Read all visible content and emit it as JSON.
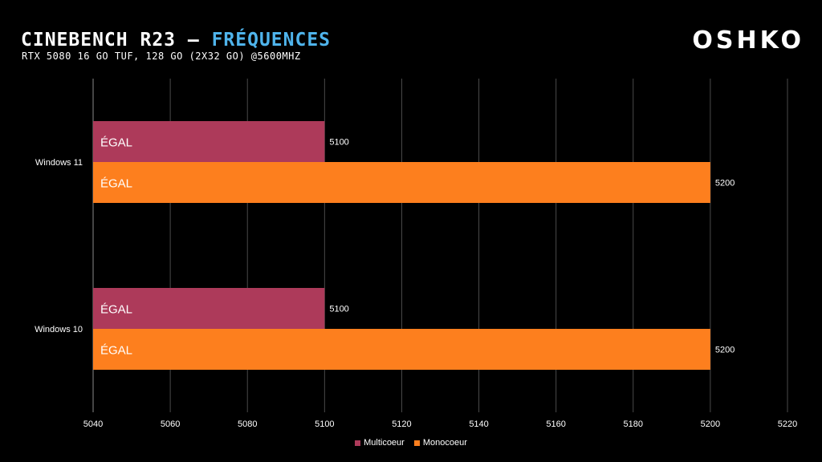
{
  "header": {
    "title_main": "CINEBENCH R23 – ",
    "title_accent": "FRÉQUENCES",
    "subtitle": "RTX 5080 16 Go TUF, 128 Go (2x32 Go) @5600MHz",
    "logo": "OSHKO"
  },
  "colors": {
    "background": "#000000",
    "multicoeur": "#ad3a5a",
    "monocoeur": "#fd7f1e",
    "title_accent": "#4fb4ec",
    "gridline": "#4a4a4a"
  },
  "chart_data": {
    "type": "bar",
    "orientation": "horizontal",
    "categories": [
      "Windows 11",
      "Windows 10"
    ],
    "series": [
      {
        "name": "Multicoeur",
        "values": [
          5100,
          5100
        ],
        "bar_labels": [
          "ÉGAL",
          "ÉGAL"
        ],
        "data_labels": [
          "5100",
          "5100"
        ]
      },
      {
        "name": "Monocoeur",
        "values": [
          5200,
          5200
        ],
        "bar_labels": [
          "ÉGAL",
          "ÉGAL"
        ],
        "data_labels": [
          "5200",
          "5200"
        ]
      }
    ],
    "xlim": [
      5040,
      5220
    ],
    "xticks": [
      5040,
      5060,
      5080,
      5100,
      5120,
      5140,
      5160,
      5180,
      5200,
      5220
    ],
    "xtick_labels": [
      "5040",
      "5060",
      "5080",
      "5100",
      "5120",
      "5140",
      "5160",
      "5180",
      "5200",
      "5220"
    ],
    "grid": true,
    "legend_position": "bottom"
  }
}
